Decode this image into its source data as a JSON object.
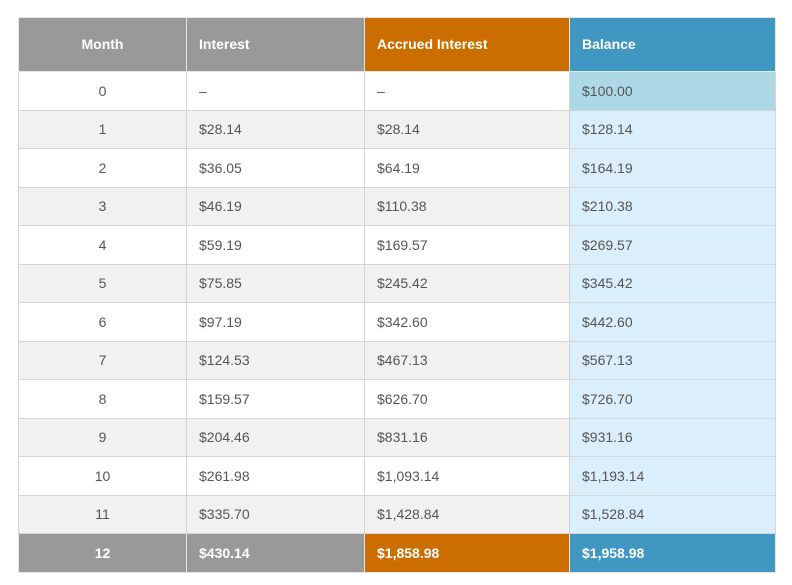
{
  "colors": {
    "header_gray": "#999999",
    "header_orange": "#cc6d00",
    "header_blue": "#4097c2",
    "balance_first": "#add8e6",
    "balance_cells": "#dbeefb",
    "row_alt": "#f1f1f1"
  },
  "headers": {
    "month": "Month",
    "interest": "Interest",
    "accrued": "Accrued Interest",
    "balance": "Balance"
  },
  "rows": [
    {
      "month": "0",
      "interest": "–",
      "accrued": "–",
      "balance": "$100.00"
    },
    {
      "month": "1",
      "interest": "$28.14",
      "accrued": "$28.14",
      "balance": "$128.14"
    },
    {
      "month": "2",
      "interest": "$36.05",
      "accrued": "$64.19",
      "balance": "$164.19"
    },
    {
      "month": "3",
      "interest": "$46.19",
      "accrued": "$110.38",
      "balance": "$210.38"
    },
    {
      "month": "4",
      "interest": "$59.19",
      "accrued": "$169.57",
      "balance": "$269.57"
    },
    {
      "month": "5",
      "interest": "$75.85",
      "accrued": "$245.42",
      "balance": "$345.42"
    },
    {
      "month": "6",
      "interest": "$97.19",
      "accrued": "$342.60",
      "balance": "$442.60"
    },
    {
      "month": "7",
      "interest": "$124.53",
      "accrued": "$467.13",
      "balance": "$567.13"
    },
    {
      "month": "8",
      "interest": "$159.57",
      "accrued": "$626.70",
      "balance": "$726.70"
    },
    {
      "month": "9",
      "interest": "$204.46",
      "accrued": "$831.16",
      "balance": "$931.16"
    },
    {
      "month": "10",
      "interest": "$261.98",
      "accrued": "$1,093.14",
      "balance": "$1,193.14"
    },
    {
      "month": "11",
      "interest": "$335.70",
      "accrued": "$1,428.84",
      "balance": "$1,528.84"
    }
  ],
  "total": {
    "month": "12",
    "interest": "$430.14",
    "accrued": "$1,858.98",
    "balance": "$1,958.98"
  }
}
